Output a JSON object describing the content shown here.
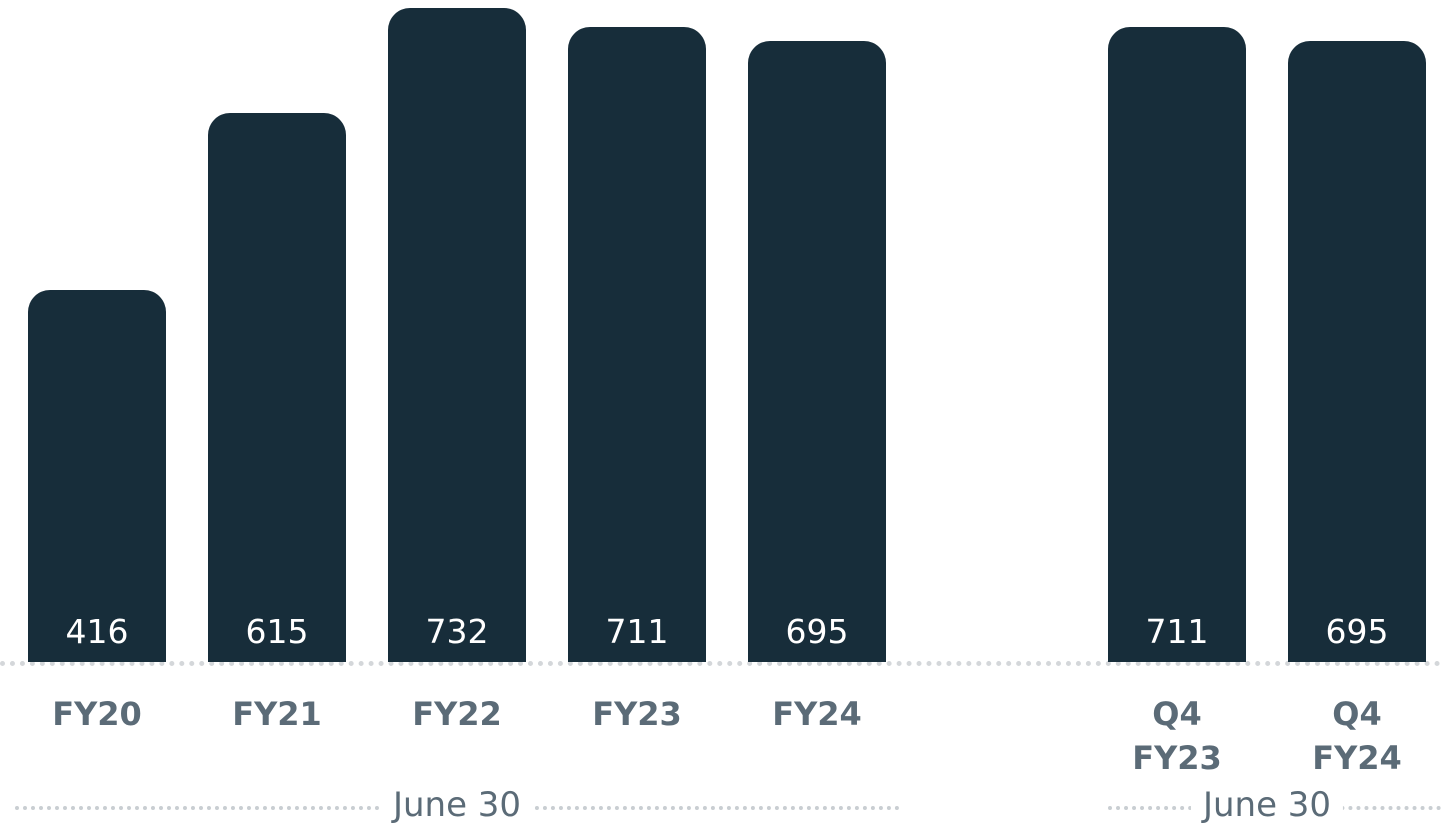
{
  "chart_data": {
    "type": "bar",
    "color": "#172d3a",
    "groups": [
      {
        "label": "June 30",
        "categories": [
          "FY20",
          "FY21",
          "FY22",
          "FY23",
          "FY24"
        ],
        "values": [
          416,
          615,
          732,
          711,
          695
        ]
      },
      {
        "label": "June 30",
        "categories": [
          "Q4 FY23",
          "Q4 FY24"
        ],
        "values": [
          711,
          695
        ]
      }
    ]
  }
}
